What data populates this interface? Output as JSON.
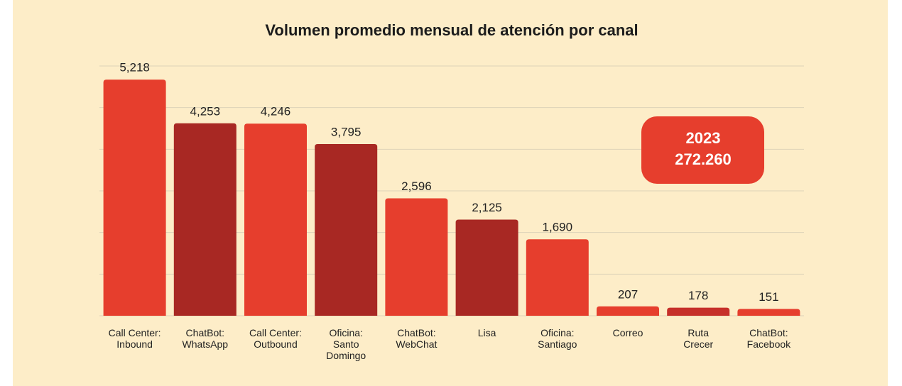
{
  "chart_data": {
    "type": "bar",
    "title": "Volumen promedio mensual de atención por canal",
    "categories": [
      "Call Center:\nInbound",
      "ChatBot:\nWhatsApp",
      "Call Center:\nOutbound",
      "Oficina:\nSanto\nDomingo",
      "ChatBot:\nWebChat",
      "Lisa",
      "Oficina:\nSantiago",
      "Correo",
      "Ruta\nCrecer",
      "ChatBot:\nFacebook"
    ],
    "values": [
      5218,
      4253,
      4246,
      3795,
      2596,
      2125,
      1690,
      207,
      178,
      151
    ],
    "value_labels": [
      "5,218",
      "4,253",
      "4,246",
      "3,795",
      "2,596",
      "2,125",
      "1,690",
      "207",
      "178",
      "151"
    ],
    "colors": [
      "#e63e2d",
      "#a82823",
      "#e63e2d",
      "#a82823",
      "#e63e2d",
      "#a82823",
      "#e63e2d",
      "#e63e2d",
      "#c6302a",
      "#e63e2d"
    ],
    "ylim": [
      0,
      5520
    ],
    "yticks": [
      0,
      920,
      1840,
      2760,
      3680,
      4600,
      5520
    ],
    "grid": true,
    "annotation": [
      "2023",
      "272.260"
    ]
  }
}
